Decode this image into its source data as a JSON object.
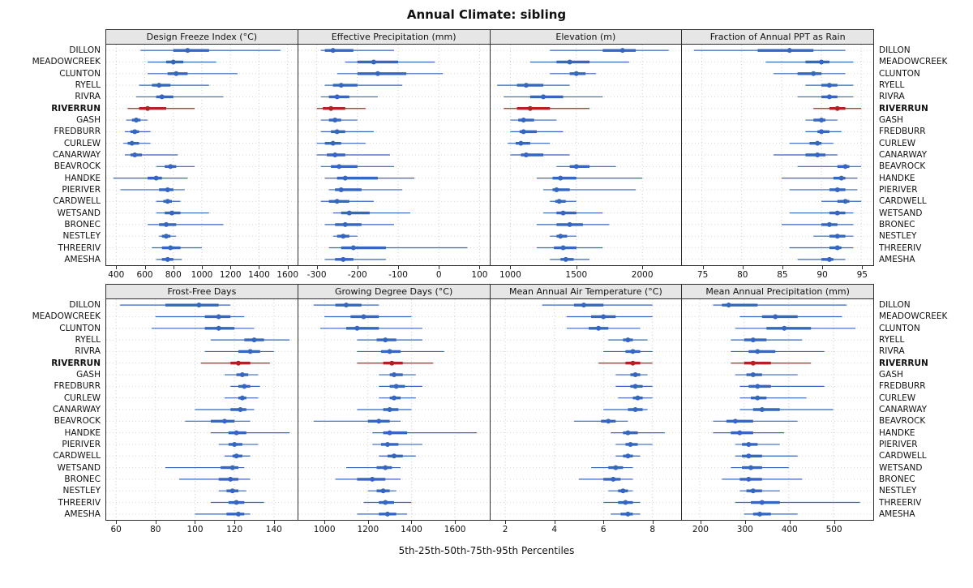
{
  "title": "Annual Climate: sibling",
  "footer": "5th-25th-50th-75th-95th Percentiles",
  "colors": {
    "series": "#3566c0",
    "highlight": "#b22222",
    "panel_header_bg": "#e6e6e6",
    "panel_border": "#2e2e2e",
    "grid": "#cfcfcf"
  },
  "chart_data": {
    "type": "scatter",
    "variant": "percentile-dotplot-trellis",
    "percentiles": [
      5,
      25,
      50,
      75,
      95
    ],
    "grid": "dotted",
    "layout": {
      "rows": 2,
      "cols": 4
    },
    "highlight_site": "RIVERRUN",
    "sites": [
      "DILLON",
      "MEADOWCREEK",
      "CLUNTON",
      "RYELL",
      "RIVRA",
      "RIVERRUN",
      "GASH",
      "FREDBURR",
      "CURLEW",
      "CANARWAY",
      "BEAVROCK",
      "HANDKE",
      "PIERIVER",
      "CARDWELL",
      "WETSAND",
      "BRONEC",
      "NESTLEY",
      "THREERIV",
      "AMESHA"
    ],
    "panels": [
      {
        "title": "Design Freeze Index (°C)",
        "xlim": [
          330,
          1670
        ],
        "ticks": [
          400,
          600,
          800,
          1000,
          1200,
          1400,
          1600
        ],
        "values": [
          [
            570,
            800,
            900,
            1050,
            1550
          ],
          [
            620,
            750,
            800,
            870,
            1100
          ],
          [
            620,
            760,
            820,
            900,
            1250
          ],
          [
            560,
            650,
            700,
            780,
            1050
          ],
          [
            540,
            680,
            720,
            800,
            1150
          ],
          [
            480,
            560,
            620,
            750,
            950
          ],
          [
            470,
            510,
            540,
            570,
            620
          ],
          [
            460,
            500,
            530,
            560,
            640
          ],
          [
            450,
            480,
            510,
            560,
            640
          ],
          [
            460,
            500,
            530,
            580,
            830
          ],
          [
            680,
            740,
            780,
            820,
            950
          ],
          [
            380,
            620,
            680,
            720,
            900
          ],
          [
            430,
            700,
            760,
            800,
            880
          ],
          [
            680,
            730,
            760,
            790,
            850
          ],
          [
            680,
            740,
            790,
            850,
            1050
          ],
          [
            620,
            700,
            750,
            820,
            1150
          ],
          [
            700,
            720,
            750,
            780,
            820
          ],
          [
            650,
            720,
            780,
            850,
            1000
          ],
          [
            680,
            720,
            760,
            800,
            860
          ]
        ]
      },
      {
        "title": "Effective Precipitation (mm)",
        "xlim": [
          -345,
          125
        ],
        "ticks": [
          -300,
          -200,
          -100,
          0,
          100
        ],
        "values": [
          [
            -290,
            -280,
            -260,
            -210,
            -110
          ],
          [
            -230,
            -200,
            -160,
            -100,
            -10
          ],
          [
            -250,
            -200,
            -150,
            -80,
            10
          ],
          [
            -280,
            -260,
            -240,
            -200,
            -90
          ],
          [
            -290,
            -270,
            -250,
            -220,
            -150
          ],
          [
            -300,
            -285,
            -265,
            -230,
            -180
          ],
          [
            -290,
            -270,
            -255,
            -240,
            -200
          ],
          [
            -290,
            -265,
            -250,
            -230,
            -160
          ],
          [
            -300,
            -280,
            -260,
            -240,
            -180
          ],
          [
            -300,
            -275,
            -255,
            -230,
            -120
          ],
          [
            -290,
            -265,
            -245,
            -200,
            -110
          ],
          [
            -280,
            -250,
            -230,
            -150,
            -60
          ],
          [
            -270,
            -255,
            -240,
            -190,
            -90
          ],
          [
            -290,
            -270,
            -250,
            -220,
            -160
          ],
          [
            -260,
            -240,
            -220,
            -170,
            -70
          ],
          [
            -280,
            -255,
            -230,
            -190,
            -110
          ],
          [
            -260,
            -250,
            -235,
            -220,
            -200
          ],
          [
            -270,
            -240,
            -210,
            -130,
            70
          ],
          [
            -280,
            -255,
            -235,
            -210,
            -130
          ]
        ]
      },
      {
        "title": "Elevation (m)",
        "xlim": [
          850,
          2300
        ],
        "ticks": [
          1000,
          1500,
          2000
        ],
        "values": [
          [
            1300,
            1700,
            1850,
            1950,
            2200
          ],
          [
            1150,
            1350,
            1450,
            1600,
            1900
          ],
          [
            1300,
            1450,
            1500,
            1570,
            1650
          ],
          [
            900,
            1050,
            1120,
            1250,
            1450
          ],
          [
            950,
            1150,
            1250,
            1400,
            1700
          ],
          [
            950,
            1050,
            1150,
            1300,
            1600
          ],
          [
            1000,
            1060,
            1100,
            1180,
            1350
          ],
          [
            1000,
            1070,
            1100,
            1200,
            1400
          ],
          [
            980,
            1040,
            1080,
            1150,
            1300
          ],
          [
            1000,
            1080,
            1120,
            1250,
            1450
          ],
          [
            1350,
            1450,
            1500,
            1600,
            1800
          ],
          [
            1200,
            1320,
            1380,
            1500,
            2000
          ],
          [
            1250,
            1320,
            1350,
            1450,
            1950
          ],
          [
            1300,
            1340,
            1370,
            1420,
            1500
          ],
          [
            1250,
            1350,
            1400,
            1500,
            1700
          ],
          [
            1200,
            1350,
            1450,
            1550,
            1750
          ],
          [
            1300,
            1350,
            1380,
            1430,
            1500
          ],
          [
            1200,
            1330,
            1400,
            1500,
            1700
          ],
          [
            1300,
            1380,
            1420,
            1480,
            1600
          ]
        ]
      },
      {
        "title": "Fraction of Annual PPT as Rain",
        "xlim": [
          72.5,
          96.5
        ],
        "ticks": [
          75,
          80,
          85,
          90,
          95
        ],
        "values": [
          [
            74,
            82,
            86,
            89,
            93
          ],
          [
            83,
            88,
            90,
            91,
            94
          ],
          [
            84,
            87,
            89,
            90,
            93
          ],
          [
            88,
            90,
            91,
            92,
            94
          ],
          [
            87,
            90,
            91,
            92,
            94
          ],
          [
            89,
            91,
            92,
            93,
            95
          ],
          [
            88,
            89,
            90,
            90.5,
            92
          ],
          [
            88,
            89.5,
            90,
            91,
            92.5
          ],
          [
            86,
            88.5,
            89.5,
            90,
            91.5
          ],
          [
            84,
            88,
            89.5,
            90.5,
            92
          ],
          [
            87,
            92,
            93,
            93.5,
            95
          ],
          [
            85,
            91.5,
            92.5,
            93,
            94.5
          ],
          [
            86,
            91,
            92,
            93,
            94.5
          ],
          [
            90,
            92,
            93,
            93.5,
            95
          ],
          [
            86,
            91,
            92,
            93,
            94
          ],
          [
            85,
            90,
            91,
            92,
            94
          ],
          [
            89,
            91,
            92,
            93,
            94
          ],
          [
            86,
            91,
            92,
            92.5,
            94
          ],
          [
            87,
            90,
            91,
            91.5,
            93
          ]
        ]
      },
      {
        "title": "Frost-Free Days",
        "xlim": [
          55,
          152
        ],
        "ticks": [
          60,
          80,
          100,
          120,
          140
        ],
        "values": [
          [
            62,
            85,
            102,
            112,
            118
          ],
          [
            80,
            105,
            112,
            118,
            125
          ],
          [
            78,
            105,
            112,
            120,
            130
          ],
          [
            108,
            125,
            130,
            135,
            148
          ],
          [
            105,
            122,
            128,
            133,
            140
          ],
          [
            103,
            118,
            122,
            128,
            138
          ],
          [
            115,
            121,
            124,
            127,
            132
          ],
          [
            118,
            122,
            125,
            128,
            133
          ],
          [
            115,
            122,
            124,
            126,
            132
          ],
          [
            100,
            118,
            123,
            126,
            130
          ],
          [
            95,
            108,
            115,
            120,
            128
          ],
          [
            108,
            117,
            121,
            126,
            148
          ],
          [
            112,
            117,
            120,
            124,
            132
          ],
          [
            115,
            119,
            121,
            124,
            128
          ],
          [
            85,
            113,
            119,
            122,
            125
          ],
          [
            92,
            112,
            118,
            122,
            128
          ],
          [
            112,
            116,
            119,
            122,
            126
          ],
          [
            108,
            117,
            121,
            125,
            135
          ],
          [
            100,
            116,
            122,
            125,
            128
          ]
        ]
      },
      {
        "title": "Growing Degree Days (°C)",
        "xlim": [
          880,
          1760
        ],
        "ticks": [
          1000,
          1200,
          1400,
          1600
        ],
        "values": [
          [
            950,
            1050,
            1100,
            1170,
            1250
          ],
          [
            1000,
            1120,
            1180,
            1250,
            1400
          ],
          [
            980,
            1100,
            1150,
            1250,
            1450
          ],
          [
            1150,
            1240,
            1280,
            1330,
            1450
          ],
          [
            1150,
            1260,
            1300,
            1350,
            1550
          ],
          [
            1150,
            1270,
            1310,
            1360,
            1500
          ],
          [
            1250,
            1300,
            1320,
            1360,
            1420
          ],
          [
            1250,
            1300,
            1330,
            1370,
            1450
          ],
          [
            1250,
            1300,
            1320,
            1350,
            1420
          ],
          [
            1150,
            1270,
            1300,
            1340,
            1400
          ],
          [
            950,
            1200,
            1250,
            1300,
            1350
          ],
          [
            1220,
            1270,
            1300,
            1380,
            1700
          ],
          [
            1220,
            1260,
            1290,
            1340,
            1450
          ],
          [
            1250,
            1290,
            1320,
            1360,
            1420
          ],
          [
            1100,
            1240,
            1280,
            1310,
            1350
          ],
          [
            1050,
            1150,
            1220,
            1280,
            1350
          ],
          [
            1200,
            1240,
            1270,
            1300,
            1330
          ],
          [
            1180,
            1250,
            1280,
            1320,
            1400
          ],
          [
            1150,
            1250,
            1290,
            1330,
            1380
          ]
        ]
      },
      {
        "title": "Mean Annual Air Temperature (°C)",
        "xlim": [
          1.4,
          9.2
        ],
        "ticks": [
          2,
          4,
          6,
          8
        ],
        "values": [
          [
            3.5,
            4.8,
            5.2,
            6.0,
            8.0
          ],
          [
            4.5,
            5.5,
            6.0,
            6.5,
            8.0
          ],
          [
            4.5,
            5.4,
            5.8,
            6.2,
            7.5
          ],
          [
            6.2,
            6.8,
            7.0,
            7.2,
            7.8
          ],
          [
            6.0,
            6.9,
            7.2,
            7.5,
            8.0
          ],
          [
            5.8,
            6.9,
            7.2,
            7.5,
            8.0
          ],
          [
            6.5,
            7.1,
            7.3,
            7.5,
            7.8
          ],
          [
            6.5,
            7.1,
            7.3,
            7.6,
            8.0
          ],
          [
            6.6,
            7.2,
            7.4,
            7.6,
            8.0
          ],
          [
            6.0,
            7.0,
            7.3,
            7.6,
            7.8
          ],
          [
            4.8,
            5.9,
            6.2,
            6.5,
            7.0
          ],
          [
            6.3,
            6.8,
            7.0,
            7.4,
            8.5
          ],
          [
            6.5,
            6.9,
            7.1,
            7.4,
            8.0
          ],
          [
            6.5,
            6.8,
            7.0,
            7.2,
            7.5
          ],
          [
            5.5,
            6.2,
            6.5,
            6.8,
            7.2
          ],
          [
            5.0,
            6.0,
            6.4,
            6.7,
            7.2
          ],
          [
            6.2,
            6.6,
            6.8,
            7.0,
            7.2
          ],
          [
            6.0,
            6.6,
            6.9,
            7.2,
            7.5
          ],
          [
            6.3,
            6.7,
            7.0,
            7.2,
            7.5
          ]
        ]
      },
      {
        "title": "Mean Annual Precipitation (mm)",
        "xlim": [
          160,
          590
        ],
        "ticks": [
          200,
          300,
          400,
          500
        ],
        "values": [
          [
            230,
            250,
            265,
            330,
            530
          ],
          [
            290,
            340,
            370,
            420,
            520
          ],
          [
            280,
            350,
            390,
            450,
            550
          ],
          [
            270,
            300,
            320,
            350,
            430
          ],
          [
            270,
            310,
            330,
            370,
            480
          ],
          [
            270,
            300,
            320,
            360,
            450
          ],
          [
            280,
            305,
            320,
            340,
            420
          ],
          [
            290,
            310,
            330,
            360,
            480
          ],
          [
            290,
            315,
            330,
            350,
            440
          ],
          [
            290,
            320,
            340,
            380,
            500
          ],
          [
            230,
            260,
            280,
            320,
            420
          ],
          [
            230,
            270,
            290,
            320,
            390
          ],
          [
            280,
            295,
            310,
            330,
            380
          ],
          [
            280,
            295,
            310,
            340,
            420
          ],
          [
            270,
            295,
            315,
            340,
            400
          ],
          [
            250,
            290,
            310,
            340,
            430
          ],
          [
            290,
            305,
            320,
            340,
            380
          ],
          [
            280,
            315,
            340,
            380,
            560
          ],
          [
            300,
            320,
            335,
            360,
            420
          ]
        ]
      }
    ]
  }
}
